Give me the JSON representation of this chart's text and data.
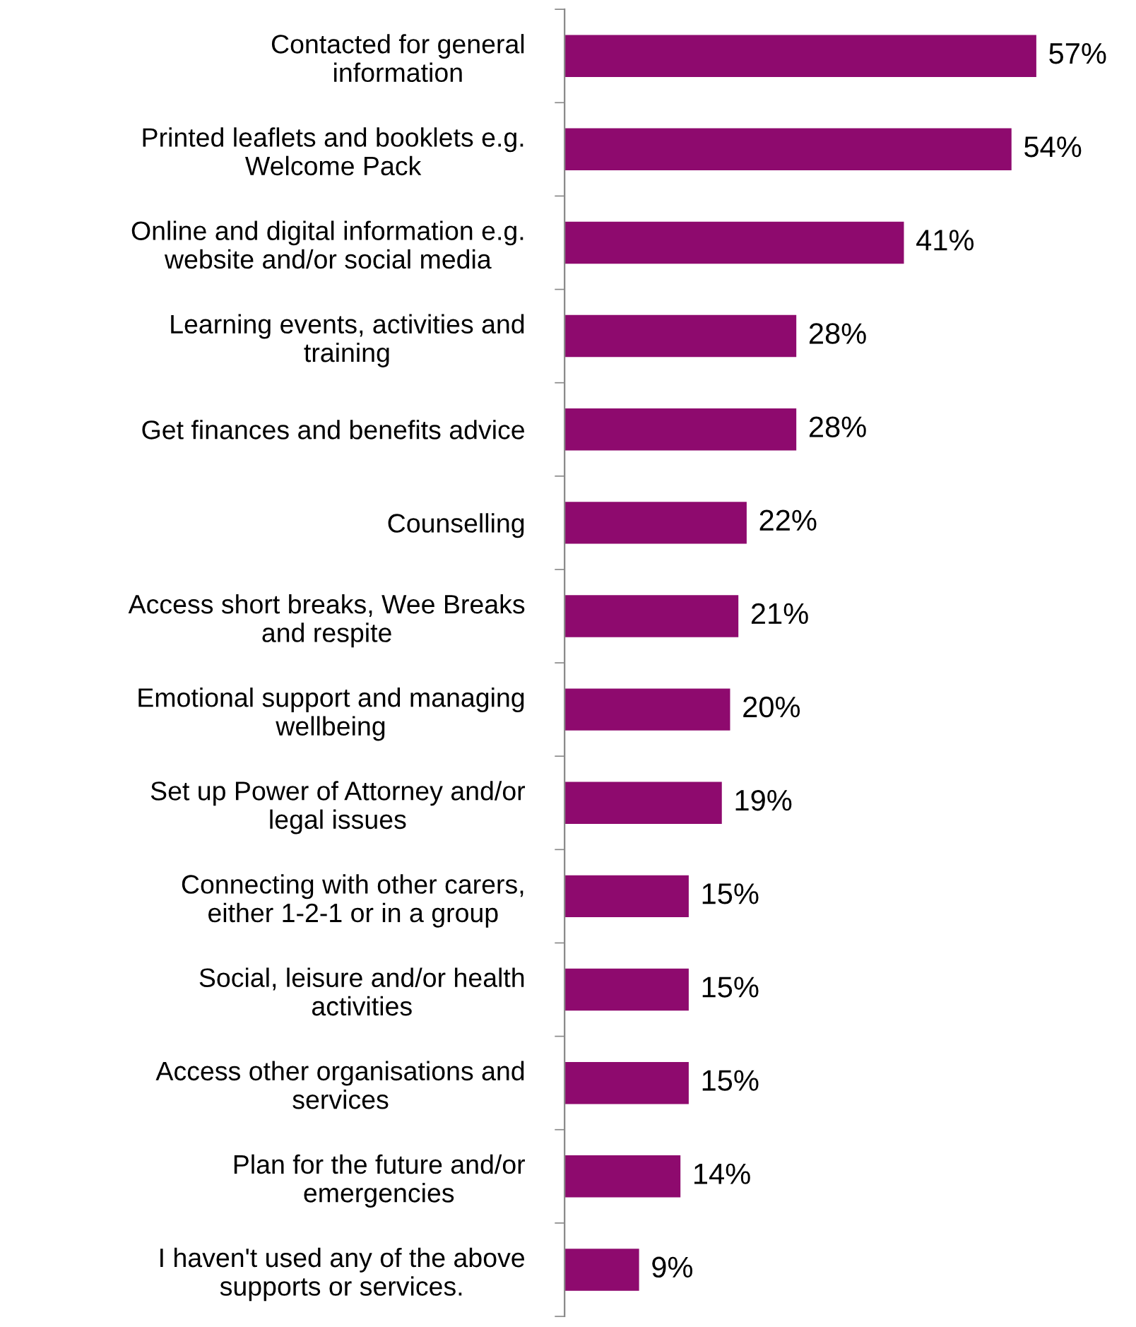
{
  "chart_data": {
    "type": "bar",
    "orientation": "horizontal",
    "categories": [
      "Contacted for general\ninformation",
      "Printed leaflets and booklets e.g.\nWelcome Pack",
      "Online and digital information e.g.\nwebsite and/or social media",
      "Learning events, activities and\ntraining",
      "Get finances and benefits advice",
      "Counselling",
      "Access short breaks, Wee Breaks\nand respite",
      "Emotional support and managing\nwellbeing",
      "Set up Power of Attorney and/or\nlegal issues",
      "Connecting with other carers,\neither 1-2-1 or in a group",
      "Social, leisure and/or health\nactivities",
      "Access other organisations and\nservices",
      "Plan for the future and/or\nemergencies",
      "I haven't used any of the above\nsupports or services."
    ],
    "values": [
      57,
      54,
      41,
      28,
      28,
      22,
      21,
      20,
      19,
      15,
      15,
      15,
      14,
      9
    ],
    "value_labels": [
      "57%",
      "54%",
      "41%",
      "28%",
      "28%",
      "22%",
      "21%",
      "20%",
      "19%",
      "15%",
      "15%",
      "15%",
      "14%",
      "9%"
    ],
    "color": "#8e0a6e",
    "grid": false,
    "legend": false
  }
}
